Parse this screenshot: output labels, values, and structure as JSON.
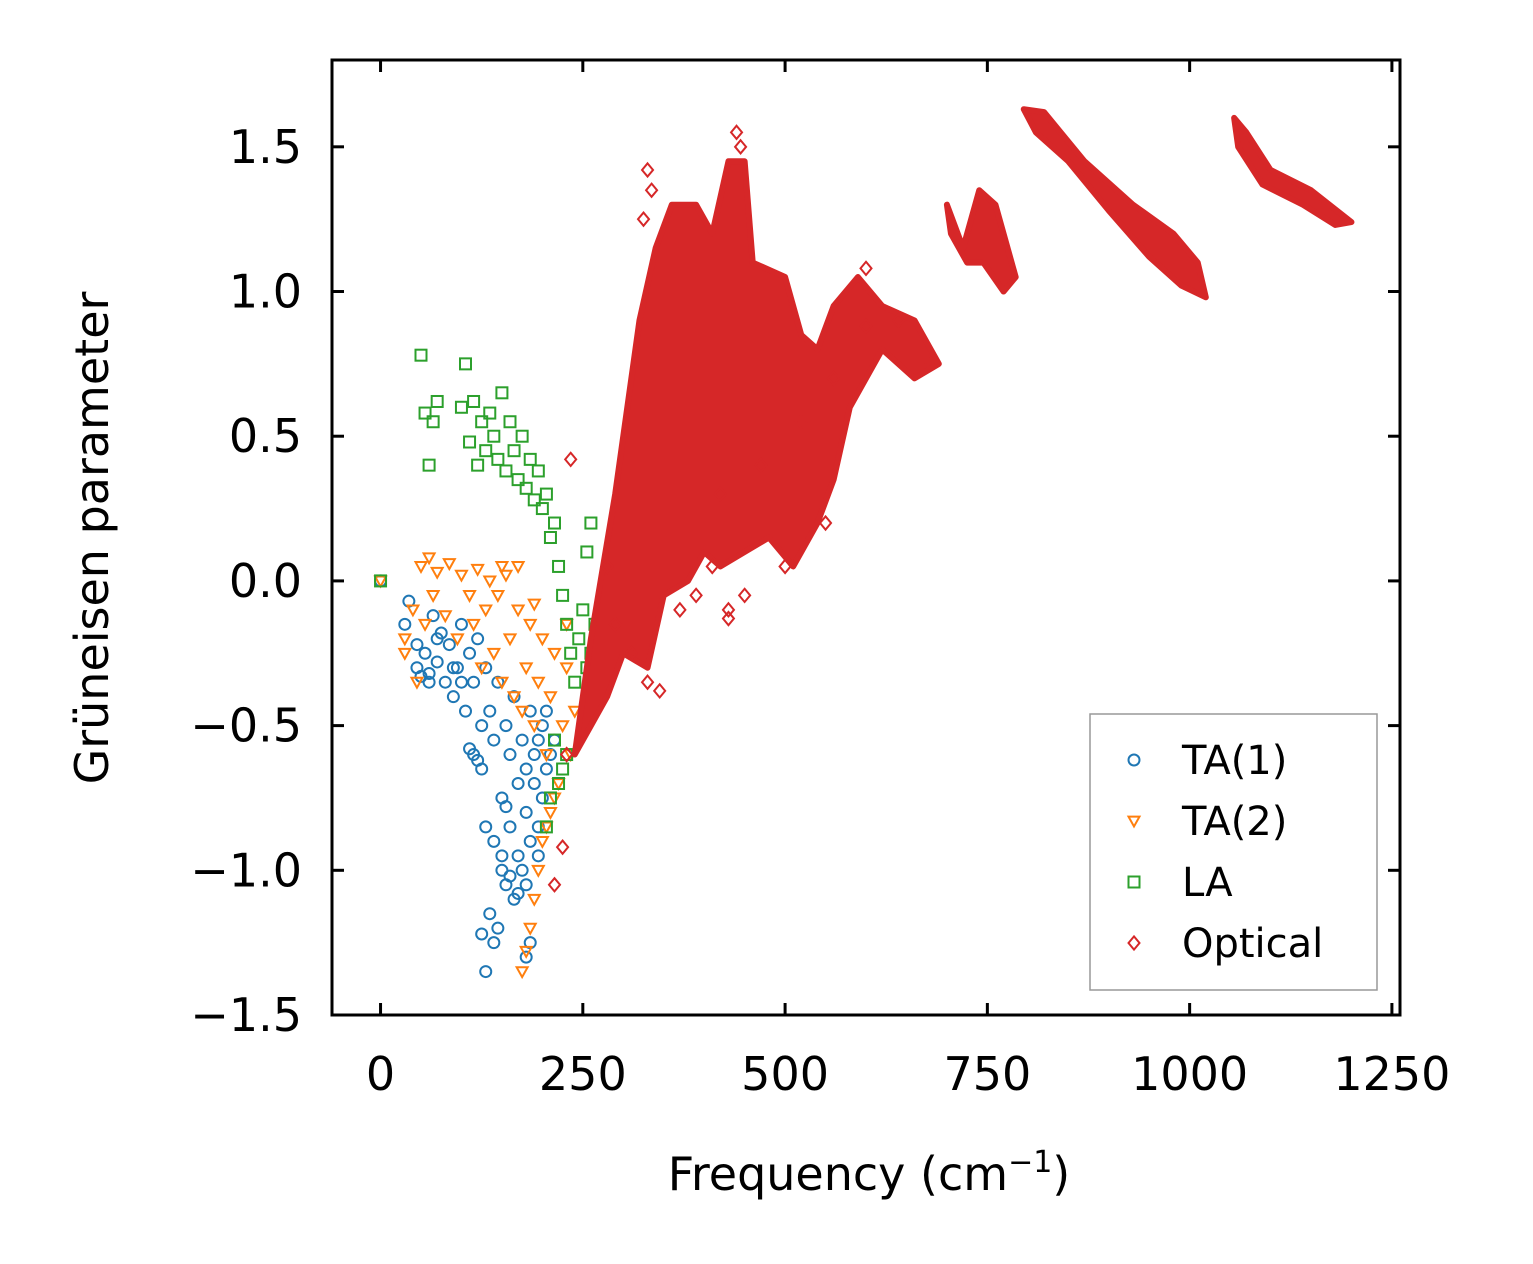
{
  "chart_data": {
    "type": "scatter",
    "xlabel": "Frequency (cm",
    "xlabel_sup": "−1",
    "xlabel_close": ")",
    "ylabel": "Grüneisen parameter",
    "xlim": [
      -60,
      1260
    ],
    "ylim": [
      -1.5,
      1.8
    ],
    "xticks": [
      0,
      250,
      500,
      750,
      1000,
      1250
    ],
    "xtick_labels": [
      "0",
      "250",
      "500",
      "750",
      "1000",
      "1250"
    ],
    "yticks": [
      -1.5,
      -1.0,
      -0.5,
      0.0,
      0.5,
      1.0,
      1.5
    ],
    "ytick_labels": [
      "−1.5",
      "−1.0",
      "−0.5",
      "0.0",
      "0.5",
      "1.0",
      "1.5"
    ],
    "legend_position": "bottom-right",
    "series": [
      {
        "name": "TA(1)",
        "marker": "circle",
        "color": "#1f77b4",
        "points": [
          [
            0,
            0
          ],
          [
            30,
            -0.15
          ],
          [
            35,
            -0.07
          ],
          [
            45,
            -0.22
          ],
          [
            45,
            -0.3
          ],
          [
            55,
            -0.25
          ],
          [
            60,
            -0.32
          ],
          [
            65,
            -0.12
          ],
          [
            70,
            -0.28
          ],
          [
            75,
            -0.18
          ],
          [
            80,
            -0.35
          ],
          [
            85,
            -0.22
          ],
          [
            90,
            -0.4
          ],
          [
            95,
            -0.3
          ],
          [
            100,
            -0.15
          ],
          [
            105,
            -0.45
          ],
          [
            110,
            -0.25
          ],
          [
            115,
            -0.35
          ],
          [
            115,
            -0.6
          ],
          [
            120,
            -0.2
          ],
          [
            125,
            -0.5
          ],
          [
            125,
            -0.65
          ],
          [
            130,
            -0.3
          ],
          [
            130,
            -0.85
          ],
          [
            135,
            -0.45
          ],
          [
            135,
            -1.15
          ],
          [
            140,
            -0.55
          ],
          [
            140,
            -0.9
          ],
          [
            145,
            -0.35
          ],
          [
            145,
            -1.2
          ],
          [
            150,
            -0.75
          ],
          [
            150,
            -0.95
          ],
          [
            155,
            -0.5
          ],
          [
            155,
            -1.05
          ],
          [
            160,
            -0.6
          ],
          [
            160,
            -0.85
          ],
          [
            165,
            -0.4
          ],
          [
            165,
            -1.1
          ],
          [
            170,
            -0.7
          ],
          [
            170,
            -0.95
          ],
          [
            175,
            -0.55
          ],
          [
            175,
            -1.0
          ],
          [
            180,
            -0.8
          ],
          [
            180,
            -0.65
          ],
          [
            185,
            -0.45
          ],
          [
            185,
            -0.9
          ],
          [
            190,
            -0.7
          ],
          [
            190,
            -0.6
          ],
          [
            195,
            -0.85
          ],
          [
            195,
            -0.55
          ],
          [
            200,
            -0.75
          ],
          [
            200,
            -0.5
          ],
          [
            205,
            -0.65
          ],
          [
            205,
            -0.45
          ],
          [
            210,
            -0.6
          ],
          [
            215,
            -0.55
          ],
          [
            125,
            -1.22
          ],
          [
            130,
            -1.35
          ],
          [
            180,
            -1.3
          ],
          [
            185,
            -1.25
          ],
          [
            120,
            -0.62
          ],
          [
            110,
            -0.58
          ],
          [
            140,
            -1.25
          ],
          [
            150,
            -1.0
          ],
          [
            160,
            -1.02
          ],
          [
            170,
            -1.08
          ],
          [
            100,
            -0.35
          ],
          [
            90,
            -0.3
          ],
          [
            70,
            -0.2
          ],
          [
            60,
            -0.35
          ],
          [
            50,
            -0.33
          ],
          [
            180,
            -1.05
          ],
          [
            195,
            -0.95
          ],
          [
            155,
            -0.78
          ]
        ]
      },
      {
        "name": "TA(2)",
        "marker": "triangle-down",
        "color": "#ff7f0e",
        "points": [
          [
            0,
            0
          ],
          [
            30,
            -0.2
          ],
          [
            30,
            -0.25
          ],
          [
            40,
            -0.1
          ],
          [
            50,
            0.05
          ],
          [
            60,
            0.08
          ],
          [
            65,
            -0.05
          ],
          [
            70,
            0.03
          ],
          [
            80,
            -0.12
          ],
          [
            85,
            0.06
          ],
          [
            95,
            -0.2
          ],
          [
            100,
            0.02
          ],
          [
            110,
            -0.05
          ],
          [
            115,
            -0.15
          ],
          [
            120,
            0.04
          ],
          [
            125,
            -0.3
          ],
          [
            130,
            -0.1
          ],
          [
            135,
            0.0
          ],
          [
            140,
            -0.25
          ],
          [
            145,
            -0.05
          ],
          [
            150,
            -0.35
          ],
          [
            155,
            0.02
          ],
          [
            160,
            -0.2
          ],
          [
            165,
            -0.4
          ],
          [
            170,
            -0.1
          ],
          [
            175,
            -0.45
          ],
          [
            180,
            -0.3
          ],
          [
            185,
            -0.15
          ],
          [
            190,
            -0.5
          ],
          [
            195,
            -0.35
          ],
          [
            200,
            -0.2
          ],
          [
            205,
            -0.6
          ],
          [
            210,
            -0.4
          ],
          [
            215,
            -0.25
          ],
          [
            220,
            -0.7
          ],
          [
            225,
            -0.5
          ],
          [
            230,
            -0.3
          ],
          [
            235,
            -0.6
          ],
          [
            240,
            -0.45
          ],
          [
            175,
            -1.35
          ],
          [
            180,
            -1.28
          ],
          [
            185,
            -1.2
          ],
          [
            190,
            -1.1
          ],
          [
            195,
            -1.0
          ],
          [
            200,
            -0.9
          ],
          [
            205,
            -0.85
          ],
          [
            210,
            -0.8
          ],
          [
            215,
            -0.75
          ],
          [
            45,
            -0.35
          ],
          [
            55,
            -0.15
          ],
          [
            150,
            0.05
          ],
          [
            170,
            0.05
          ],
          [
            190,
            -0.08
          ],
          [
            230,
            -0.15
          ]
        ]
      },
      {
        "name": "LA",
        "marker": "square",
        "color": "#2ca02c",
        "points": [
          [
            0,
            0
          ],
          [
            50,
            0.78
          ],
          [
            55,
            0.58
          ],
          [
            60,
            0.4
          ],
          [
            65,
            0.55
          ],
          [
            70,
            0.62
          ],
          [
            100,
            0.6
          ],
          [
            105,
            0.75
          ],
          [
            110,
            0.48
          ],
          [
            115,
            0.62
          ],
          [
            120,
            0.4
          ],
          [
            125,
            0.55
          ],
          [
            130,
            0.45
          ],
          [
            135,
            0.58
          ],
          [
            140,
            0.5
          ],
          [
            145,
            0.42
          ],
          [
            150,
            0.65
          ],
          [
            155,
            0.38
          ],
          [
            160,
            0.55
          ],
          [
            165,
            0.45
          ],
          [
            170,
            0.35
          ],
          [
            175,
            0.5
          ],
          [
            180,
            0.32
          ],
          [
            185,
            0.42
          ],
          [
            190,
            0.28
          ],
          [
            195,
            0.38
          ],
          [
            200,
            0.25
          ],
          [
            205,
            0.3
          ],
          [
            210,
            0.15
          ],
          [
            215,
            0.2
          ],
          [
            220,
            0.05
          ],
          [
            225,
            -0.05
          ],
          [
            230,
            -0.15
          ],
          [
            235,
            -0.25
          ],
          [
            240,
            -0.35
          ],
          [
            245,
            -0.2
          ],
          [
            250,
            -0.1
          ],
          [
            255,
            -0.3
          ],
          [
            260,
            -0.25
          ],
          [
            265,
            -0.15
          ],
          [
            270,
            -0.2
          ],
          [
            275,
            -0.35
          ],
          [
            260,
            0.2
          ],
          [
            255,
            0.1
          ],
          [
            215,
            -0.55
          ],
          [
            220,
            -0.7
          ],
          [
            225,
            -0.65
          ],
          [
            230,
            -0.6
          ],
          [
            210,
            -0.75
          ],
          [
            205,
            -0.85
          ]
        ]
      },
      {
        "name": "Optical",
        "marker": "diamond",
        "color": "#d62728",
        "points": [
          [
            230,
            -0.6
          ],
          [
            235,
            0.42
          ],
          [
            215,
            -1.05
          ],
          [
            225,
            -0.92
          ],
          [
            330,
            1.42
          ],
          [
            335,
            1.35
          ],
          [
            325,
            1.25
          ],
          [
            440,
            1.55
          ],
          [
            445,
            1.5
          ],
          [
            600,
            1.08
          ],
          [
            280,
            0.05
          ],
          [
            290,
            -0.15
          ],
          [
            310,
            -0.25
          ],
          [
            330,
            -0.35
          ],
          [
            345,
            -0.38
          ],
          [
            370,
            -0.1
          ],
          [
            390,
            -0.05
          ],
          [
            410,
            0.05
          ],
          [
            430,
            -0.1
          ],
          [
            450,
            -0.05
          ],
          [
            500,
            0.05
          ],
          [
            550,
            0.2
          ],
          [
            430,
            -0.13
          ],
          [
            420,
            0.3
          ],
          [
            470,
            0.4
          ],
          [
            520,
            0.55
          ],
          [
            560,
            0.7
          ],
          [
            600,
            0.88
          ],
          [
            640,
            0.9
          ],
          [
            680,
            0.75
          ]
        ],
        "dense_regions": [
          [
            [
              240,
              -0.6
            ],
            [
              260,
              -0.2
            ],
            [
              290,
              0.3
            ],
            [
              320,
              0.9
            ],
            [
              340,
              1.15
            ],
            [
              360,
              1.3
            ],
            [
              390,
              1.3
            ],
            [
              410,
              1.2
            ],
            [
              430,
              1.45
            ],
            [
              450,
              1.45
            ],
            [
              460,
              1.1
            ],
            [
              500,
              1.05
            ],
            [
              520,
              0.85
            ],
            [
              540,
              0.8
            ],
            [
              560,
              0.95
            ],
            [
              590,
              1.05
            ],
            [
              620,
              0.95
            ],
            [
              660,
              0.9
            ],
            [
              690,
              0.75
            ],
            [
              660,
              0.7
            ],
            [
              620,
              0.8
            ],
            [
              580,
              0.6
            ],
            [
              560,
              0.35
            ],
            [
              540,
              0.2
            ],
            [
              510,
              0.05
            ],
            [
              480,
              0.15
            ],
            [
              450,
              0.1
            ],
            [
              420,
              0.05
            ],
            [
              400,
              0.1
            ],
            [
              380,
              0.0
            ],
            [
              350,
              -0.05
            ],
            [
              330,
              -0.3
            ],
            [
              300,
              -0.25
            ],
            [
              280,
              -0.4
            ],
            [
              260,
              -0.5
            ]
          ],
          [
            [
              700,
              1.3
            ],
            [
              720,
              1.15
            ],
            [
              740,
              1.35
            ],
            [
              760,
              1.3
            ],
            [
              785,
              1.05
            ],
            [
              770,
              1.0
            ],
            [
              745,
              1.1
            ],
            [
              725,
              1.1
            ],
            [
              705,
              1.2
            ]
          ],
          [
            [
              795,
              1.63
            ],
            [
              820,
              1.62
            ],
            [
              870,
              1.45
            ],
            [
              930,
              1.3
            ],
            [
              980,
              1.2
            ],
            [
              1010,
              1.1
            ],
            [
              1020,
              0.98
            ],
            [
              990,
              1.02
            ],
            [
              950,
              1.12
            ],
            [
              900,
              1.28
            ],
            [
              850,
              1.45
            ],
            [
              810,
              1.55
            ]
          ],
          [
            [
              1055,
              1.6
            ],
            [
              1070,
              1.55
            ],
            [
              1100,
              1.42
            ],
            [
              1150,
              1.35
            ],
            [
              1200,
              1.24
            ],
            [
              1180,
              1.23
            ],
            [
              1140,
              1.3
            ],
            [
              1090,
              1.37
            ],
            [
              1060,
              1.5
            ]
          ]
        ]
      }
    ]
  }
}
